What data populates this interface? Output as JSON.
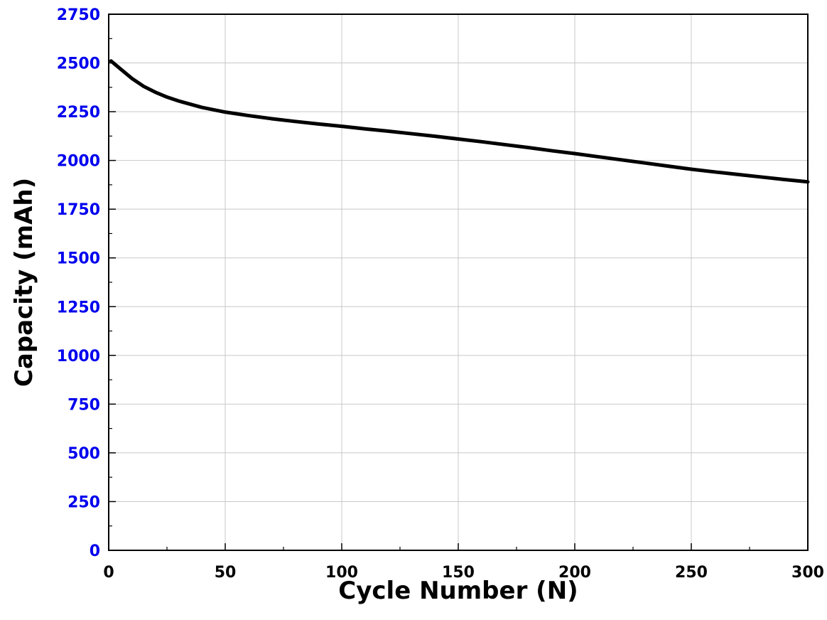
{
  "chart_data": {
    "type": "line",
    "title": "",
    "xlabel": "Cycle Number (N)",
    "ylabel": "Capacity (mAh)",
    "xlim": [
      0,
      300
    ],
    "ylim": [
      0,
      2750
    ],
    "x_ticks": [
      "0",
      "50",
      "100",
      "150",
      "200",
      "250",
      "300"
    ],
    "y_ticks": [
      "0",
      "250",
      "500",
      "750",
      "1000",
      "1250",
      "1500",
      "1750",
      "2000",
      "2250",
      "2500",
      "2750"
    ],
    "grid": true,
    "legend": "none",
    "colors": {
      "line": "#000000",
      "y_tick_labels": "#0000ee",
      "x_tick_labels": "#000000",
      "grid": "#c8c8c8"
    },
    "series": [
      {
        "x": [
          1,
          5,
          10,
          15,
          20,
          25,
          30,
          40,
          50,
          60,
          70,
          80,
          90,
          100,
          110,
          120,
          130,
          140,
          150,
          160,
          170,
          180,
          190,
          200,
          210,
          220,
          230,
          240,
          250,
          260,
          270,
          280,
          290,
          300
        ],
        "values": [
          2510,
          2470,
          2420,
          2380,
          2350,
          2325,
          2305,
          2272,
          2248,
          2230,
          2214,
          2200,
          2187,
          2175,
          2162,
          2150,
          2137,
          2124,
          2110,
          2096,
          2081,
          2066,
          2050,
          2035,
          2019,
          2003,
          1987,
          1971,
          1955,
          1941,
          1928,
          1915,
          1902,
          1890
        ]
      }
    ]
  }
}
